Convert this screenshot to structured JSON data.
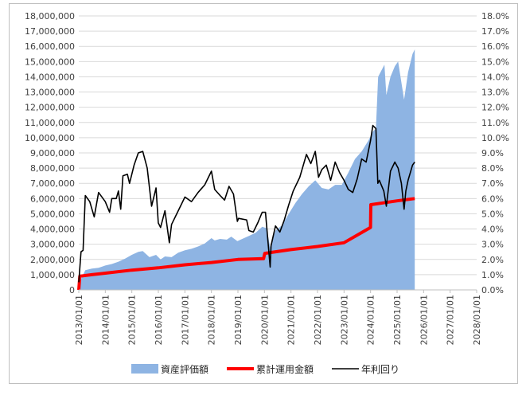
{
  "chart_data": {
    "type": "line",
    "title": "",
    "xlabel": "",
    "ylabel": "",
    "x_ticks": [
      "2013/01/01",
      "2014/01/01",
      "2015/01/01",
      "2016/01/01",
      "2017/01/01",
      "2018/01/01",
      "2019/01/01",
      "2020/01/01",
      "2021/01/01",
      "2022/01/01",
      "2023/01/01",
      "2024/01/01",
      "2025/01/01",
      "2026/01/01",
      "2027/01/01",
      "2028/01/01"
    ],
    "xlim": [
      "2013/01/01",
      "2028/01/01"
    ],
    "y_left": {
      "ylim": [
        0,
        18000000
      ],
      "ticks": [
        "0",
        "1,000,000",
        "2,000,000",
        "3,000,000",
        "4,000,000",
        "5,000,000",
        "6,000,000",
        "7,000,000",
        "8,000,000",
        "9,000,000",
        "10,000,000",
        "11,000,000",
        "12,000,000",
        "13,000,000",
        "14,000,000",
        "15,000,000",
        "16,000,000",
        "17,000,000",
        "18,000,000"
      ]
    },
    "y_right": {
      "ylim": [
        0,
        18
      ],
      "unit": "%",
      "ticks": [
        "0.0%",
        "1.0%",
        "2.0%",
        "3.0%",
        "4.0%",
        "5.0%",
        "6.0%",
        "7.0%",
        "8.0%",
        "9.0%",
        "10.0%",
        "11.0%",
        "12.0%",
        "13.0%",
        "14.0%",
        "15.0%",
        "16.0%",
        "17.0%",
        "18.0%"
      ]
    },
    "legend_position": "bottom",
    "grid": true,
    "series": [
      {
        "name": "資産評価額",
        "kind": "area",
        "axis": "left",
        "color": "#8eb4e3",
        "points": [
          [
            "2013/01/01",
            400000
          ],
          [
            "2013/04/01",
            1300000
          ],
          [
            "2013/07/01",
            1400000
          ],
          [
            "2013/10/01",
            1450000
          ],
          [
            "2014/01/01",
            1600000
          ],
          [
            "2014/04/01",
            1700000
          ],
          [
            "2014/07/01",
            1850000
          ],
          [
            "2014/10/01",
            2050000
          ],
          [
            "2015/01/01",
            2300000
          ],
          [
            "2015/04/01",
            2500000
          ],
          [
            "2015/06/01",
            2550000
          ],
          [
            "2015/09/01",
            2150000
          ],
          [
            "2015/12/01",
            2300000
          ],
          [
            "2016/02/01",
            2000000
          ],
          [
            "2016/04/01",
            2200000
          ],
          [
            "2016/07/01",
            2150000
          ],
          [
            "2016/10/01",
            2450000
          ],
          [
            "2017/01/01",
            2600000
          ],
          [
            "2017/04/01",
            2700000
          ],
          [
            "2017/07/01",
            2850000
          ],
          [
            "2017/10/01",
            3050000
          ],
          [
            "2018/01/01",
            3400000
          ],
          [
            "2018/02/15",
            3250000
          ],
          [
            "2018/05/01",
            3350000
          ],
          [
            "2018/08/01",
            3300000
          ],
          [
            "2018/10/01",
            3500000
          ],
          [
            "2018/12/25",
            3200000
          ],
          [
            "2019/03/01",
            3350000
          ],
          [
            "2019/06/01",
            3550000
          ],
          [
            "2019/09/01",
            3750000
          ],
          [
            "2019/12/01",
            4150000
          ],
          [
            "2020/02/01",
            4050000
          ],
          [
            "2020/03/20",
            2800000
          ],
          [
            "2020/06/01",
            3900000
          ],
          [
            "2020/09/01",
            4250000
          ],
          [
            "2020/12/01",
            5000000
          ],
          [
            "2021/03/01",
            5700000
          ],
          [
            "2021/06/01",
            6300000
          ],
          [
            "2021/09/01",
            6800000
          ],
          [
            "2021/12/01",
            7200000
          ],
          [
            "2022/03/01",
            6700000
          ],
          [
            "2022/06/01",
            6600000
          ],
          [
            "2022/09/01",
            6900000
          ],
          [
            "2022/12/01",
            6900000
          ],
          [
            "2023/03/01",
            7700000
          ],
          [
            "2023/06/01",
            8600000
          ],
          [
            "2023/09/01",
            9100000
          ],
          [
            "2023/12/01",
            9800000
          ],
          [
            "2024/02/01",
            10400000
          ],
          [
            "2024/03/15",
            10600000
          ],
          [
            "2024/04/15",
            14000000
          ],
          [
            "2024/07/10",
            14800000
          ],
          [
            "2024/08/05",
            12800000
          ],
          [
            "2024/10/01",
            14000000
          ],
          [
            "2024/12/01",
            14700000
          ],
          [
            "2025/01/15",
            15000000
          ],
          [
            "2025/04/07",
            12500000
          ],
          [
            "2025/06/01",
            14300000
          ],
          [
            "2025/08/01",
            15500000
          ],
          [
            "2025/09/01",
            15800000
          ]
        ]
      },
      {
        "name": "累計運用金額",
        "kind": "line",
        "axis": "left",
        "color": "#ff0000",
        "points": [
          [
            "2013/01/01",
            0
          ],
          [
            "2013/01/15",
            900000
          ],
          [
            "2013/07/01",
            1000000
          ],
          [
            "2014/01/01",
            1100000
          ],
          [
            "2015/01/01",
            1300000
          ],
          [
            "2016/01/01",
            1450000
          ],
          [
            "2017/01/01",
            1650000
          ],
          [
            "2018/01/01",
            1800000
          ],
          [
            "2019/01/01",
            2000000
          ],
          [
            "2019/12/20",
            2050000
          ],
          [
            "2020/01/05",
            2400000
          ],
          [
            "2020/12/31",
            2650000
          ],
          [
            "2021/12/31",
            2850000
          ],
          [
            "2022/12/31",
            3100000
          ],
          [
            "2023/12/31",
            4100000
          ],
          [
            "2024/01/05",
            5600000
          ],
          [
            "2024/12/31",
            5850000
          ],
          [
            "2025/09/01",
            6000000
          ]
        ]
      },
      {
        "name": "年利回り",
        "kind": "line",
        "axis": "right",
        "color": "#000000",
        "points": [
          [
            "2013/01/01",
            0.5
          ],
          [
            "2013/02/01",
            2.5
          ],
          [
            "2013/03/01",
            2.6
          ],
          [
            "2013/04/01",
            6.2
          ],
          [
            "2013/06/01",
            5.8
          ],
          [
            "2013/08/01",
            4.8
          ],
          [
            "2013/10/01",
            6.4
          ],
          [
            "2014/01/01",
            5.8
          ],
          [
            "2014/03/01",
            5.1
          ],
          [
            "2014/04/01",
            6.0
          ],
          [
            "2014/06/01",
            6.0
          ],
          [
            "2014/07/01",
            6.5
          ],
          [
            "2014/08/01",
            5.3
          ],
          [
            "2014/09/01",
            7.5
          ],
          [
            "2014/11/01",
            7.6
          ],
          [
            "2014/12/01",
            7.0
          ],
          [
            "2015/02/01",
            8.2
          ],
          [
            "2015/04/01",
            9.0
          ],
          [
            "2015/06/01",
            9.1
          ],
          [
            "2015/08/01",
            8.0
          ],
          [
            "2015/10/01",
            5.5
          ],
          [
            "2015/12/01",
            6.7
          ],
          [
            "2016/01/01",
            4.4
          ],
          [
            "2016/02/01",
            4.1
          ],
          [
            "2016/04/01",
            5.2
          ],
          [
            "2016/06/01",
            3.1
          ],
          [
            "2016/07/01",
            4.3
          ],
          [
            "2016/10/01",
            5.2
          ],
          [
            "2017/01/01",
            6.1
          ],
          [
            "2017/04/01",
            5.8
          ],
          [
            "2017/07/01",
            6.4
          ],
          [
            "2017/10/01",
            6.9
          ],
          [
            "2018/01/01",
            7.8
          ],
          [
            "2018/02/15",
            6.6
          ],
          [
            "2018/05/01",
            6.2
          ],
          [
            "2018/07/01",
            5.9
          ],
          [
            "2018/09/01",
            6.8
          ],
          [
            "2018/11/01",
            6.3
          ],
          [
            "2018/12/25",
            4.5
          ],
          [
            "2019/01/10",
            4.7
          ],
          [
            "2019/05/01",
            4.6
          ],
          [
            "2019/06/01",
            3.9
          ],
          [
            "2019/08/01",
            3.8
          ],
          [
            "2019/10/01",
            4.4
          ],
          [
            "2019/12/01",
            5.1
          ],
          [
            "2020/01/15",
            5.1
          ],
          [
            "2020/03/20",
            1.5
          ],
          [
            "2020/04/01",
            2.9
          ],
          [
            "2020/06/01",
            4.2
          ],
          [
            "2020/08/01",
            3.8
          ],
          [
            "2020/10/01",
            4.6
          ],
          [
            "2020/12/01",
            5.6
          ],
          [
            "2021/02/01",
            6.5
          ],
          [
            "2021/05/01",
            7.4
          ],
          [
            "2021/08/01",
            8.9
          ],
          [
            "2021/10/01",
            8.3
          ],
          [
            "2021/12/01",
            9.1
          ],
          [
            "2022/01/15",
            7.4
          ],
          [
            "2022/03/01",
            7.9
          ],
          [
            "2022/05/01",
            8.2
          ],
          [
            "2022/07/01",
            7.2
          ],
          [
            "2022/09/01",
            8.4
          ],
          [
            "2022/11/01",
            7.7
          ],
          [
            "2023/01/01",
            7.2
          ],
          [
            "2023/03/01",
            6.6
          ],
          [
            "2023/05/01",
            6.4
          ],
          [
            "2023/07/01",
            7.3
          ],
          [
            "2023/09/01",
            8.6
          ],
          [
            "2023/11/01",
            8.4
          ],
          [
            "2024/01/01",
            9.8
          ],
          [
            "2024/02/01",
            10.8
          ],
          [
            "2024/03/15",
            10.6
          ],
          [
            "2024/04/10",
            7.0
          ],
          [
            "2024/05/01",
            7.2
          ],
          [
            "2024/07/01",
            6.5
          ],
          [
            "2024/08/05",
            5.5
          ],
          [
            "2024/10/01",
            7.8
          ],
          [
            "2024/12/01",
            8.4
          ],
          [
            "2025/01/15",
            8.0
          ],
          [
            "2025/03/01",
            7.0
          ],
          [
            "2025/04/07",
            5.3
          ],
          [
            "2025/05/01",
            6.5
          ],
          [
            "2025/06/01",
            7.2
          ],
          [
            "2025/08/01",
            8.2
          ],
          [
            "2025/09/01",
            8.4
          ]
        ]
      }
    ]
  }
}
